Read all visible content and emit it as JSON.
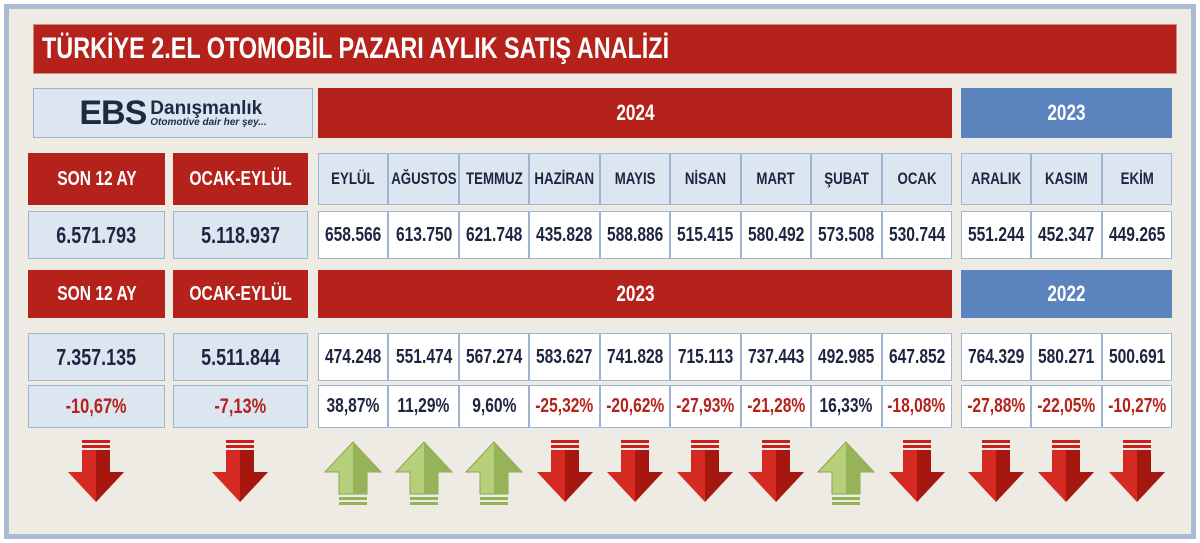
{
  "title": "TÜRKİYE 2.EL OTOMOBİL PAZARI AYLIK SATIŞ ANALİZİ",
  "logo": {
    "brand": "EBS",
    "name": "Danışmanlık",
    "tagline": "Otomotive dair her şey..."
  },
  "colors": {
    "red": "#b4221b",
    "blue": "#5b83bd",
    "up": "#a9c46a",
    "down": "#c8201b"
  },
  "section1": {
    "label_total": "SON 12 AY",
    "label_ytd": "OCAK-EYLÜL",
    "year_main": "2024",
    "year_prev": "2023",
    "total": "6.571.793",
    "ytd": "5.118.937",
    "months": [
      "EYLÜL",
      "AĞUSTOS",
      "TEMMUZ",
      "HAZİRAN",
      "MAYIS",
      "NİSAN",
      "MART",
      "ŞUBAT",
      "OCAK"
    ],
    "values": [
      "658.566",
      "613.750",
      "621.748",
      "435.828",
      "588.886",
      "515.415",
      "580.492",
      "573.508",
      "530.744"
    ],
    "prev_months": [
      "ARALIK",
      "KASIM",
      "EKİM"
    ],
    "prev_values": [
      "551.244",
      "452.347",
      "449.265"
    ]
  },
  "section2": {
    "label_total": "SON 12 AY",
    "label_ytd": "OCAK-EYLÜL",
    "year_main": "2023",
    "year_prev": "2022",
    "total": "7.357.135",
    "ytd": "5.511.844",
    "values": [
      "474.248",
      "551.474",
      "567.274",
      "583.627",
      "741.828",
      "715.113",
      "737.443",
      "492.985",
      "647.852"
    ],
    "prev_values": [
      "764.329",
      "580.271",
      "500.691"
    ]
  },
  "changes": {
    "total": "-10,67%",
    "ytd": "-7,13%",
    "values": [
      "38,87%",
      "11,29%",
      "9,60%",
      "-25,32%",
      "-20,62%",
      "-27,93%",
      "-21,28%",
      "16,33%",
      "-18,08%"
    ],
    "prev_values": [
      "-27,88%",
      "-22,05%",
      "-10,27%"
    ],
    "directions": [
      "down",
      "down",
      "up",
      "up",
      "up",
      "down",
      "down",
      "down",
      "down",
      "up",
      "down",
      "down",
      "down",
      "down"
    ]
  }
}
